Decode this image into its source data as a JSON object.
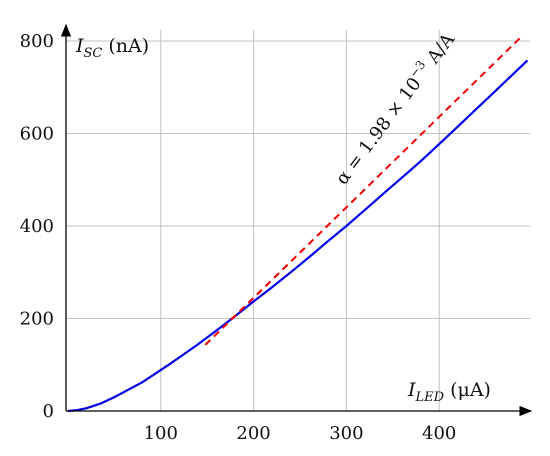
{
  "chart_data": {
    "type": "line",
    "x_label": {
      "var": "I",
      "sub": "LED",
      "unit": "(μA)"
    },
    "y_label": {
      "var": "I",
      "sub": "SC",
      "unit": "(nA)"
    },
    "xlim": [
      0,
      500
    ],
    "ylim": [
      0,
      820
    ],
    "x_ticks": [
      100,
      200,
      300,
      400
    ],
    "y_ticks": [
      0,
      200,
      400,
      600,
      800
    ],
    "grid": true,
    "series": [
      {
        "style": "solid",
        "color": "#0000ee",
        "x": [
          0,
          10,
          20,
          35,
          50,
          65,
          80,
          95,
          110,
          125,
          140,
          160,
          180,
          200,
          220,
          240,
          260,
          280,
          300,
          320,
          340,
          360,
          380,
          400,
          420,
          440,
          460,
          480,
          495
        ],
        "y": [
          0,
          2,
          6,
          16,
          30,
          46,
          62,
          82,
          102,
          123,
          144,
          174,
          205,
          237,
          268,
          300,
          333,
          367,
          400,
          435,
          470,
          505,
          540,
          577,
          615,
          653,
          691,
          729,
          758
        ]
      },
      {
        "style": "dashed",
        "color": "#ee0000",
        "x": [
          148,
          490
        ],
        "y": [
          143,
          812
        ]
      }
    ],
    "annotation": {
      "text": "α = 1.98 × 10",
      "exp": "−3",
      "unit": " A/A",
      "x": 298,
      "y": 487
    }
  }
}
